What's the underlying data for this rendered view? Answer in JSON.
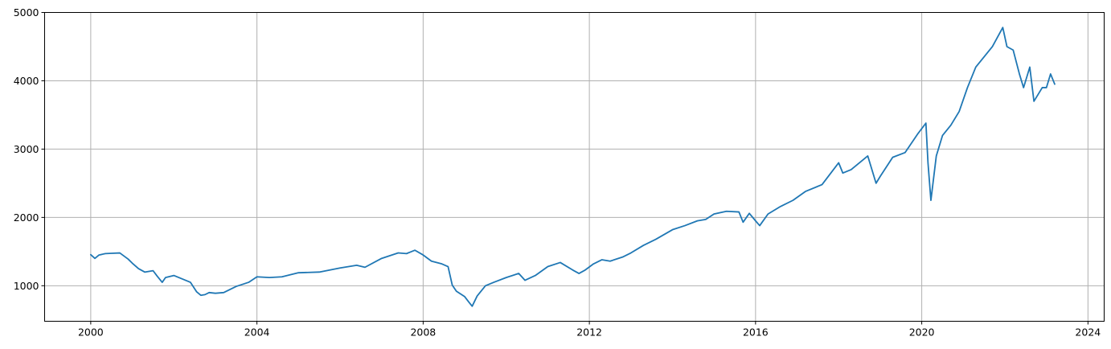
{
  "chart_data": {
    "type": "line",
    "title": "",
    "xlabel": "",
    "ylabel": "",
    "xlim": [
      1998.89,
      2024.39
    ],
    "ylim": [
      480,
      5000
    ],
    "xticks": [
      2000,
      2004,
      2008,
      2012,
      2016,
      2020,
      2024
    ],
    "xtick_labels": [
      "2000",
      "2004",
      "2008",
      "2012",
      "2016",
      "2020",
      "2024"
    ],
    "yticks": [
      1000,
      2000,
      3000,
      4000,
      5000
    ],
    "ytick_labels": [
      "1000",
      "2000",
      "3000",
      "4000",
      "5000"
    ],
    "grid": true,
    "legend": "none",
    "series": [
      {
        "color": "#1f77b4",
        "x": [
          2000.0,
          2000.1,
          2000.2,
          2000.35,
          2000.5,
          2000.7,
          2000.9,
          2001.0,
          2001.15,
          2001.3,
          2001.5,
          2001.6,
          2001.72,
          2001.8,
          2002.0,
          2002.2,
          2002.4,
          2002.55,
          2002.65,
          2002.75,
          2002.85,
          2003.0,
          2003.2,
          2003.5,
          2003.8,
          2004.0,
          2004.3,
          2004.6,
          2005.0,
          2005.5,
          2006.0,
          2006.4,
          2006.6,
          2007.0,
          2007.4,
          2007.6,
          2007.8,
          2008.0,
          2008.2,
          2008.45,
          2008.6,
          2008.7,
          2008.8,
          2008.9,
          2009.0,
          2009.1,
          2009.18,
          2009.3,
          2009.5,
          2009.7,
          2010.0,
          2010.3,
          2010.45,
          2010.7,
          2011.0,
          2011.3,
          2011.6,
          2011.75,
          2011.9,
          2012.1,
          2012.3,
          2012.5,
          2012.8,
          2013.0,
          2013.3,
          2013.6,
          2014.0,
          2014.3,
          2014.6,
          2014.8,
          2015.0,
          2015.3,
          2015.6,
          2015.7,
          2015.85,
          2016.0,
          2016.1,
          2016.3,
          2016.6,
          2016.9,
          2017.2,
          2017.6,
          2018.0,
          2018.1,
          2018.3,
          2018.7,
          2018.9,
          2019.0,
          2019.3,
          2019.6,
          2019.9,
          2020.1,
          2020.15,
          2020.22,
          2020.35,
          2020.5,
          2020.7,
          2020.9,
          2021.1,
          2021.3,
          2021.5,
          2021.7,
          2021.95,
          2022.05,
          2022.2,
          2022.35,
          2022.45,
          2022.6,
          2022.7,
          2022.8,
          2022.9,
          2023.0,
          2023.1,
          2023.2
        ],
        "y": [
          1455,
          1400,
          1450,
          1470,
          1475,
          1480,
          1390,
          1330,
          1250,
          1200,
          1220,
          1140,
          1050,
          1120,
          1150,
          1100,
          1050,
          910,
          860,
          870,
          900,
          890,
          900,
          990,
          1050,
          1130,
          1120,
          1130,
          1190,
          1200,
          1260,
          1300,
          1270,
          1400,
          1480,
          1470,
          1520,
          1450,
          1360,
          1320,
          1280,
          1010,
          920,
          880,
          840,
          760,
          700,
          850,
          1000,
          1050,
          1120,
          1180,
          1080,
          1150,
          1280,
          1340,
          1230,
          1180,
          1230,
          1320,
          1380,
          1360,
          1420,
          1480,
          1590,
          1680,
          1820,
          1880,
          1950,
          1970,
          2050,
          2090,
          2080,
          1930,
          2060,
          1950,
          1880,
          2050,
          2160,
          2250,
          2380,
          2480,
          2800,
          2650,
          2700,
          2900,
          2500,
          2600,
          2880,
          2950,
          3220,
          3380,
          2800,
          2250,
          2900,
          3200,
          3350,
          3550,
          3900,
          4200,
          4350,
          4500,
          4780,
          4500,
          4450,
          4100,
          3900,
          4200,
          3700,
          3800,
          3900,
          3900,
          4100,
          3950
        ]
      }
    ]
  }
}
